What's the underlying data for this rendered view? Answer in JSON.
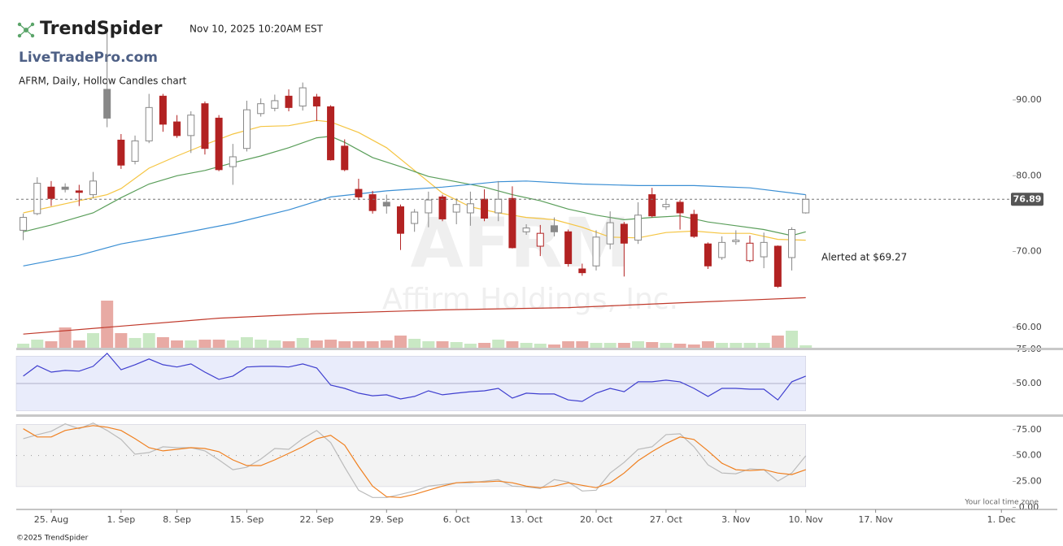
{
  "header": {
    "logo": "TrendSpider",
    "datetime": "Nov 10, 2025 10:20AM EST",
    "site": "LiveTradePro.com",
    "chart_label": "AFRM, Daily, Hollow Candles chart",
    "watermark_symbol": "AFRM",
    "watermark_name": "Affirm Holdings, Inc.",
    "annotation": "Alerted at $69.27",
    "timezone_note": "Your local time zone",
    "copyright": "©2025 TrendSpider"
  },
  "chart_data": [
    {
      "type": "candlestick",
      "xlim": [
        -0.5,
        70.8
      ],
      "ylim": [
        57.3,
        98.9
      ],
      "yticks": [
        {
          "value": 60,
          "label": "60.00"
        },
        {
          "value": 70,
          "label": "70.00"
        },
        {
          "value": 80,
          "label": "80.00"
        },
        {
          "value": 90,
          "label": "90.00"
        }
      ],
      "x": [
        0,
        1,
        2,
        3,
        4,
        5,
        6,
        7,
        8,
        9,
        10,
        11,
        12,
        13,
        14,
        15,
        16,
        17,
        18,
        19,
        20,
        21,
        22,
        23,
        24,
        25,
        26,
        27,
        28,
        29,
        30,
        31,
        32,
        33,
        34,
        35,
        36,
        37,
        38,
        39,
        40,
        41,
        42,
        43,
        44,
        45,
        46,
        47,
        48,
        49,
        50,
        51,
        52,
        53,
        54,
        55,
        56
      ],
      "open": [
        72.8,
        75,
        78.5,
        78.5,
        78.0,
        77.5,
        91.4,
        84.7,
        81.9,
        84.6,
        90.5,
        87.1,
        85.3,
        89.5,
        87.6,
        81.2,
        83.6,
        88.2,
        88.9,
        90.5,
        89.2,
        90.4,
        89.1,
        83.9,
        78.2,
        77.5,
        76.5,
        75.9,
        73.7,
        75.1,
        77.2,
        75.2,
        75.1,
        76.9,
        75.1,
        77.0,
        72.6,
        70.7,
        73.4,
        72.6,
        67.7,
        68.1,
        71.0,
        73.6,
        71.5,
        77.5,
        75.9,
        76.5,
        74.9,
        71.0,
        69.2,
        71.3,
        68.8,
        69.3,
        70.7,
        69.2,
        75.1
      ],
      "high": [
        75,
        79.8,
        79.3,
        79,
        78.8,
        80.5,
        98.9,
        85.5,
        85.3,
        90.8,
        90.8,
        88,
        88.5,
        89.8,
        88,
        84.2,
        89.9,
        90.2,
        90.7,
        91.4,
        92.3,
        90.8,
        89.3,
        84.8,
        79.6,
        78,
        77.5,
        76.2,
        75.6,
        77.9,
        77.5,
        77,
        77.9,
        78.2,
        79.3,
        78.6,
        73.6,
        73.5,
        74.5,
        72.9,
        68.4,
        72.8,
        75.3,
        73.9,
        76.5,
        78.4,
        76.8,
        76.8,
        75.5,
        71.2,
        72,
        72.8,
        72.1,
        72.5,
        70.8,
        73.2,
        77.5
      ],
      "low": [
        71.5,
        74.8,
        76,
        77.8,
        76,
        77,
        86.4,
        80.9,
        81.5,
        84.3,
        85.8,
        85,
        83,
        82.8,
        80.6,
        78.8,
        83.2,
        87.8,
        88.5,
        88.5,
        88.6,
        87.2,
        82,
        80.6,
        76.8,
        75,
        75,
        70.2,
        72.6,
        73.2,
        74,
        73.6,
        73.4,
        74,
        74,
        70.4,
        72.2,
        69.4,
        72,
        68,
        66.8,
        67.5,
        70.3,
        66.7,
        71,
        74.5,
        75.5,
        72.9,
        71.8,
        67.7,
        68.9,
        70.9,
        68.6,
        67.8,
        65.2,
        67.5,
        75.0
      ],
      "close": [
        74.5,
        79,
        77,
        78.2,
        77.8,
        79.3,
        87.6,
        81.4,
        84.6,
        89.0,
        86.8,
        85.3,
        88.0,
        83.6,
        80.8,
        82.5,
        88.7,
        89.5,
        89.9,
        89.0,
        91.6,
        89.2,
        82.1,
        80.8,
        77.2,
        75.4,
        76.0,
        72.4,
        75.2,
        76.8,
        74.3,
        76.2,
        76.3,
        74.4,
        76.9,
        70.5,
        73.1,
        72.4,
        72.6,
        68.4,
        67.2,
        71.9,
        73.8,
        71.1,
        74.8,
        74.7,
        76.2,
        75.1,
        72.0,
        68.1,
        71.2,
        71.5,
        71.1,
        71.2,
        65.4,
        72.9,
        76.89
      ],
      "volume": [
        5,
        10,
        8,
        25,
        9,
        18,
        58,
        18,
        12,
        18,
        13,
        9,
        9,
        10,
        10,
        9,
        13,
        10,
        9,
        8,
        12,
        9,
        10,
        8,
        8,
        8,
        9,
        15,
        11,
        8,
        8,
        7,
        5,
        6,
        10,
        8,
        6,
        5,
        4,
        8,
        8,
        6,
        6,
        6,
        8,
        7,
        6,
        5,
        4,
        8,
        6,
        6,
        6,
        6,
        15,
        21,
        3
      ],
      "up_color": "#888888",
      "down_color": "#b22222",
      "volume_up_color": "#c9e8c4",
      "volume_down_color": "#e8aaa4",
      "last_price": 76.89,
      "series": [
        {
          "color": "#f5c542",
          "x": [
            0,
            4,
            6,
            7,
            9,
            11,
            13,
            15,
            17,
            19,
            21,
            22,
            24,
            26,
            28,
            30,
            32,
            34,
            36,
            38,
            40,
            42,
            44,
            46,
            48,
            50,
            52,
            54,
            56
          ],
          "values": [
            75.1,
            76.7,
            77.5,
            78.3,
            81,
            82.6,
            84.1,
            85.5,
            86.5,
            86.6,
            87.3,
            87.1,
            85.7,
            83.7,
            80.7,
            77.7,
            75.9,
            75.1,
            74.5,
            74.2,
            73.2,
            71.9,
            71.8,
            72.5,
            72.7,
            72.4,
            72.4,
            71.6,
            71.5
          ]
        },
        {
          "color": "#5a9e5a",
          "x": [
            0,
            2,
            5,
            7,
            9,
            11,
            13,
            15,
            17,
            19,
            21,
            22,
            23,
            25,
            27,
            29,
            31,
            33,
            35,
            37,
            39,
            41,
            43,
            45,
            47,
            49,
            51,
            53,
            55,
            56
          ],
          "values": [
            72.6,
            73.5,
            75.1,
            77.1,
            78.9,
            80,
            80.7,
            81.7,
            82.6,
            83.7,
            85,
            85.2,
            84.4,
            82.4,
            81.2,
            79.9,
            79.2,
            78.5,
            77.5,
            76.7,
            75.6,
            74.8,
            74.2,
            74.5,
            74.7,
            73.9,
            73.4,
            72.9,
            72.1,
            72.6
          ]
        },
        {
          "color": "#3b8fd4",
          "x": [
            0,
            4,
            7,
            11,
            15,
            19,
            22,
            26,
            30,
            34,
            36,
            40,
            44,
            48,
            52,
            56
          ],
          "values": [
            68.1,
            69.5,
            71,
            72.3,
            73.7,
            75.5,
            77.2,
            78,
            78.5,
            79.2,
            79.3,
            78.9,
            78.7,
            78.7,
            78.4,
            77.5
          ]
        },
        {
          "color": "#c0392b",
          "x": [
            0,
            6,
            14,
            21,
            30,
            39,
            48,
            56
          ],
          "values": [
            59.1,
            60,
            61.2,
            61.8,
            62.3,
            62.6,
            63.3,
            63.9
          ]
        }
      ]
    },
    {
      "type": "line",
      "xlim": [
        -0.5,
        70.8
      ],
      "ylim": [
        28,
        75.5
      ],
      "yticks": [
        {
          "value": 50,
          "label": "50.00"
        },
        {
          "value": 75,
          "label": "75.00"
        }
      ],
      "band": [
        30,
        70
      ],
      "band_color": "#e9ecfb",
      "midline": 50,
      "x": [
        0,
        1,
        2,
        3,
        4,
        5,
        6,
        7,
        8,
        9,
        10,
        11,
        12,
        13,
        14,
        15,
        16,
        17,
        18,
        19,
        20,
        21,
        22,
        23,
        24,
        25,
        26,
        27,
        28,
        29,
        30,
        31,
        32,
        33,
        34,
        35,
        36,
        37,
        38,
        39,
        40,
        41,
        42,
        43,
        44,
        45,
        46,
        47,
        48,
        49,
        50,
        51,
        52,
        53,
        54,
        55,
        56
      ],
      "series": [
        {
          "color": "#3f3fcf",
          "values": [
            55.4,
            63,
            58.3,
            59.5,
            59,
            62.5,
            72,
            60,
            63.7,
            67.9,
            63.7,
            62,
            64.3,
            58.3,
            53,
            55.4,
            62,
            62.5,
            62.5,
            62,
            64.3,
            61.3,
            48.8,
            46.4,
            42.9,
            41,
            41.7,
            38.7,
            40.5,
            44.6,
            41.7,
            42.9,
            44,
            44.6,
            46.4,
            39.3,
            42.9,
            42.3,
            42.3,
            38,
            36.9,
            42.9,
            46.4,
            44,
            51.2,
            51.2,
            52.4,
            51.2,
            46.4,
            40.5,
            46.4,
            46.4,
            45.8,
            45.8,
            38,
            51.2,
            55.4
          ]
        }
      ]
    },
    {
      "type": "line",
      "xlim": [
        -0.5,
        70.8
      ],
      "ylim": [
        -2,
        85
      ],
      "yticks": [
        {
          "value": 0,
          "label": "0.00"
        },
        {
          "value": 25,
          "label": "25.00"
        },
        {
          "value": 50,
          "label": "50.00"
        },
        {
          "value": 75,
          "label": "75.00"
        }
      ],
      "band": [
        20,
        80
      ],
      "band_color": "#f3f3f3",
      "midline": 50,
      "xticks": [
        {
          "value": 2,
          "label": "25. Aug"
        },
        {
          "value": 7,
          "label": "1. Sep"
        },
        {
          "value": 11,
          "label": "8. Sep"
        },
        {
          "value": 16,
          "label": "15. Sep"
        },
        {
          "value": 21,
          "label": "22. Sep"
        },
        {
          "value": 26,
          "label": "29. Sep"
        },
        {
          "value": 31,
          "label": "6. Oct"
        },
        {
          "value": 36,
          "label": "13. Oct"
        },
        {
          "value": 41,
          "label": "20. Oct"
        },
        {
          "value": 46,
          "label": "27. Oct"
        },
        {
          "value": 51,
          "label": "3. Nov"
        },
        {
          "value": 56,
          "label": "10. Nov"
        },
        {
          "value": 61,
          "label": "17. Nov"
        },
        {
          "value": 70,
          "label": "1. Dec"
        }
      ],
      "x": [
        0,
        1,
        2,
        3,
        4,
        5,
        6,
        7,
        8,
        9,
        10,
        11,
        12,
        13,
        14,
        15,
        16,
        17,
        18,
        19,
        20,
        21,
        22,
        23,
        24,
        25,
        26,
        27,
        28,
        29,
        30,
        31,
        32,
        33,
        34,
        35,
        36,
        37,
        38,
        39,
        40,
        41,
        42,
        43,
        44,
        45,
        46,
        47,
        48,
        49,
        50,
        51,
        52,
        53,
        54,
        55,
        56
      ],
      "series": [
        {
          "color": "#bbbbbb",
          "values": [
            66.3,
            70,
            73.4,
            80.5,
            75.8,
            81.3,
            74.2,
            65.5,
            51.3,
            52.9,
            58.4,
            57.6,
            57.6,
            54.5,
            45.8,
            36.3,
            38.7,
            46.6,
            56.8,
            56,
            66.3,
            74.2,
            62.4,
            38.7,
            16.6,
            9.5,
            9.5,
            12.6,
            15.8,
            20.5,
            22.1,
            23.7,
            23.7,
            25.3,
            26.8,
            20.5,
            19.7,
            18.2,
            26.8,
            24.5,
            15.8,
            16.6,
            33.1,
            43.4,
            56,
            58.4,
            70.2,
            71,
            58.4,
            41,
            33.1,
            32.4,
            37.1,
            36.3,
            25.3,
            33.1,
            49.7
          ]
        },
        {
          "color": "#f08020",
          "values": [
            75.8,
            67.9,
            67.9,
            74.2,
            76.6,
            78.9,
            77.3,
            74.2,
            66.3,
            57.6,
            54.5,
            56,
            57.6,
            56.8,
            53.7,
            45.8,
            40.3,
            40.3,
            45.8,
            52.1,
            58.4,
            66.3,
            69.5,
            60,
            39.5,
            20.5,
            10.3,
            9.5,
            12.6,
            16.6,
            20.5,
            23.7,
            24.5,
            24.5,
            25.3,
            23.7,
            20.5,
            18.9,
            20.5,
            23.7,
            21.3,
            18.9,
            23.7,
            33.1,
            45,
            53.7,
            61.6,
            67.9,
            65.5,
            54.5,
            42.6,
            36.3,
            35.5,
            36.3,
            33.1,
            31.6,
            36.3
          ]
        }
      ]
    }
  ]
}
